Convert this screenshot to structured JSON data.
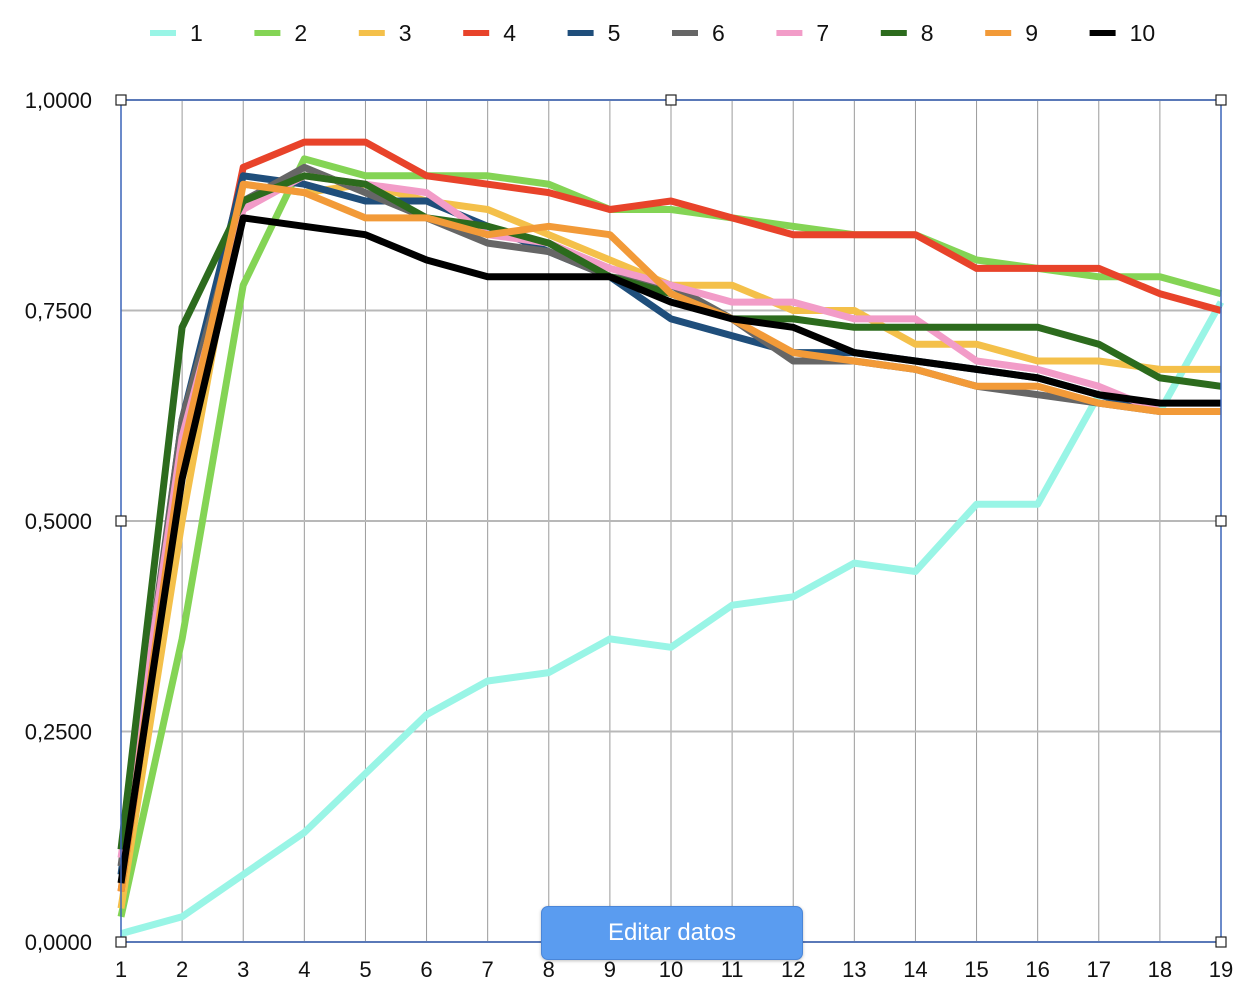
{
  "chart_data": {
    "type": "line",
    "title": "",
    "xlabel": "",
    "ylabel": "",
    "x": [
      1,
      2,
      3,
      4,
      5,
      6,
      7,
      8,
      9,
      10,
      11,
      12,
      13,
      14,
      15,
      16,
      17,
      18,
      19
    ],
    "ylim": [
      0,
      1
    ],
    "y_ticks": [
      0,
      0.25,
      0.5,
      0.75,
      1
    ],
    "y_tick_labels": [
      "0,0000",
      "0,2500",
      "0,5000",
      "0,7500",
      "1,0000"
    ],
    "grid": "both",
    "legend_position": "top",
    "series": [
      {
        "name": "1",
        "color": "#99f5e6",
        "values": [
          0.01,
          0.03,
          0.08,
          0.13,
          0.2,
          0.27,
          0.31,
          0.32,
          0.36,
          0.35,
          0.4,
          0.41,
          0.45,
          0.44,
          0.52,
          0.52,
          0.65,
          0.63,
          0.76
        ]
      },
      {
        "name": "2",
        "color": "#84d455",
        "values": [
          0.03,
          0.36,
          0.78,
          0.93,
          0.91,
          0.91,
          0.91,
          0.9,
          0.87,
          0.87,
          0.86,
          0.85,
          0.84,
          0.84,
          0.81,
          0.8,
          0.79,
          0.79,
          0.77
        ]
      },
      {
        "name": "3",
        "color": "#f4c04a",
        "values": [
          0.04,
          0.5,
          0.9,
          0.89,
          0.9,
          0.88,
          0.87,
          0.84,
          0.81,
          0.78,
          0.78,
          0.75,
          0.75,
          0.71,
          0.71,
          0.69,
          0.69,
          0.68,
          0.68
        ]
      },
      {
        "name": "4",
        "color": "#e8432a",
        "values": [
          0.06,
          0.57,
          0.92,
          0.95,
          0.95,
          0.91,
          0.9,
          0.89,
          0.87,
          0.88,
          0.86,
          0.84,
          0.84,
          0.84,
          0.8,
          0.8,
          0.8,
          0.77,
          0.75
        ]
      },
      {
        "name": "5",
        "color": "#1f4e7b",
        "values": [
          0.08,
          0.62,
          0.91,
          0.9,
          0.88,
          0.88,
          0.85,
          0.82,
          0.79,
          0.74,
          0.72,
          0.7,
          0.7,
          0.69,
          0.68,
          0.67,
          0.65,
          0.63,
          0.63
        ]
      },
      {
        "name": "6",
        "color": "#666666",
        "values": [
          0.09,
          0.62,
          0.88,
          0.92,
          0.89,
          0.86,
          0.83,
          0.82,
          0.79,
          0.78,
          0.74,
          0.69,
          0.69,
          0.68,
          0.66,
          0.65,
          0.64,
          0.63,
          0.63
        ]
      },
      {
        "name": "7",
        "color": "#f29cc8",
        "values": [
          0.1,
          0.6,
          0.87,
          0.91,
          0.9,
          0.89,
          0.84,
          0.83,
          0.8,
          0.78,
          0.76,
          0.76,
          0.74,
          0.74,
          0.69,
          0.68,
          0.66,
          0.63,
          0.63
        ]
      },
      {
        "name": "8",
        "color": "#2c6b1d",
        "values": [
          0.11,
          0.73,
          0.88,
          0.91,
          0.9,
          0.86,
          0.85,
          0.83,
          0.79,
          0.77,
          0.74,
          0.74,
          0.73,
          0.73,
          0.73,
          0.73,
          0.71,
          0.67,
          0.66
        ]
      },
      {
        "name": "9",
        "color": "#f29a38",
        "values": [
          0.06,
          0.58,
          0.9,
          0.89,
          0.86,
          0.86,
          0.84,
          0.85,
          0.84,
          0.77,
          0.74,
          0.7,
          0.69,
          0.68,
          0.66,
          0.66,
          0.64,
          0.63,
          0.63
        ]
      },
      {
        "name": "10",
        "color": "#000000",
        "values": [
          0.07,
          0.55,
          0.86,
          0.85,
          0.84,
          0.81,
          0.79,
          0.79,
          0.79,
          0.76,
          0.74,
          0.73,
          0.7,
          0.69,
          0.68,
          0.67,
          0.65,
          0.64,
          0.64
        ]
      }
    ]
  },
  "ui": {
    "edit_button_label": "Editar datos"
  }
}
